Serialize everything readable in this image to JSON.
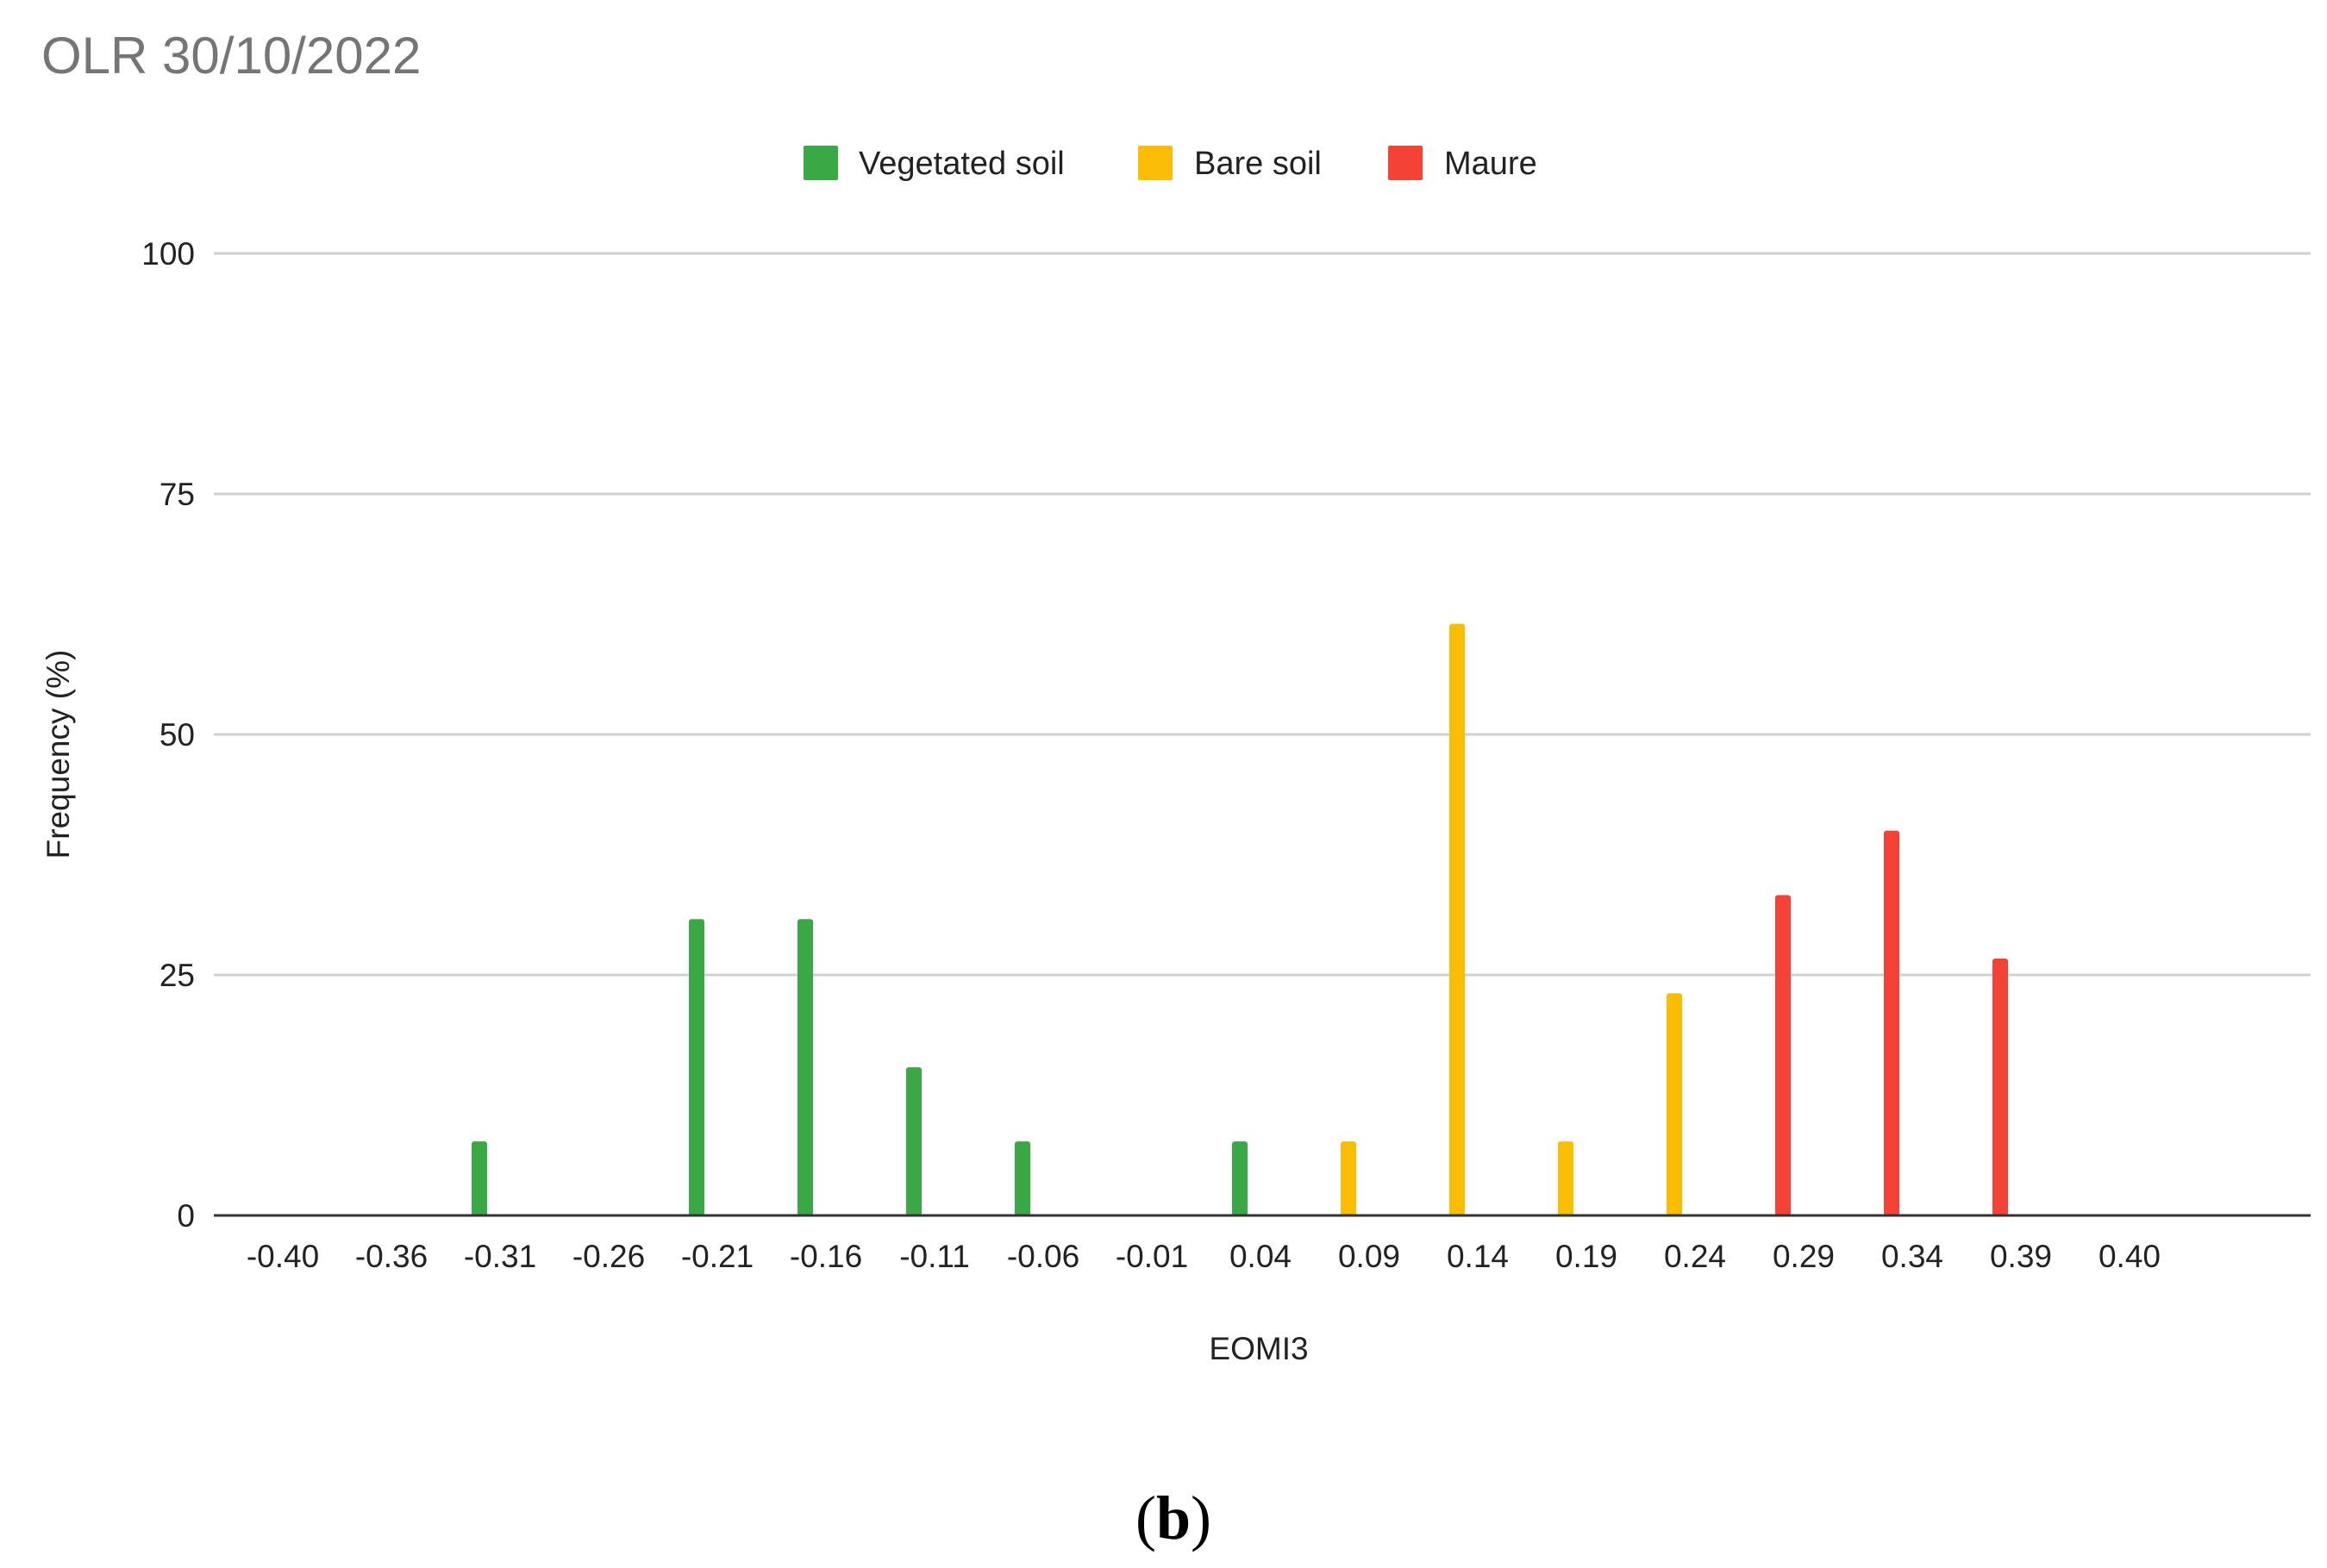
{
  "chart_data": {
    "type": "bar",
    "title": "OLR 30/10/2022",
    "xlabel": "EOMI3",
    "ylabel": "Frequency (%)",
    "ylim": [
      0,
      100
    ],
    "yticks": [
      "0",
      "25",
      "50",
      "75",
      "100"
    ],
    "grid": true,
    "legend_position": "top-center",
    "categories": [
      "-0.40",
      "-0.36",
      "-0.31",
      "-0.26",
      "-0.21",
      "-0.16",
      "-0.11",
      "-0.06",
      "-0.01",
      "0.04",
      "0.09",
      "0.14",
      "0.19",
      "0.24",
      "0.29",
      "0.34",
      "0.39",
      "0.40"
    ],
    "series": [
      {
        "name": "Vegetated soil",
        "color": "#3aa845",
        "values": [
          0,
          7.7,
          0,
          30.8,
          30.8,
          15.4,
          7.7,
          0,
          7.7,
          0,
          0,
          0,
          0,
          0,
          0,
          0,
          0,
          0
        ]
      },
      {
        "name": "Bare soil",
        "color": "#fbbc04",
        "values": [
          0,
          0,
          0,
          0,
          0,
          0,
          0,
          0,
          0,
          7.7,
          61.5,
          7.7,
          23.1,
          0,
          0,
          0,
          0,
          0
        ]
      },
      {
        "name": "Maure",
        "color": "#f44336",
        "values": [
          0,
          0,
          0,
          0,
          0,
          0,
          0,
          0,
          0,
          0,
          0,
          0,
          0,
          33.3,
          40.0,
          26.7,
          0,
          0
        ]
      }
    ]
  },
  "panel_label": "b"
}
